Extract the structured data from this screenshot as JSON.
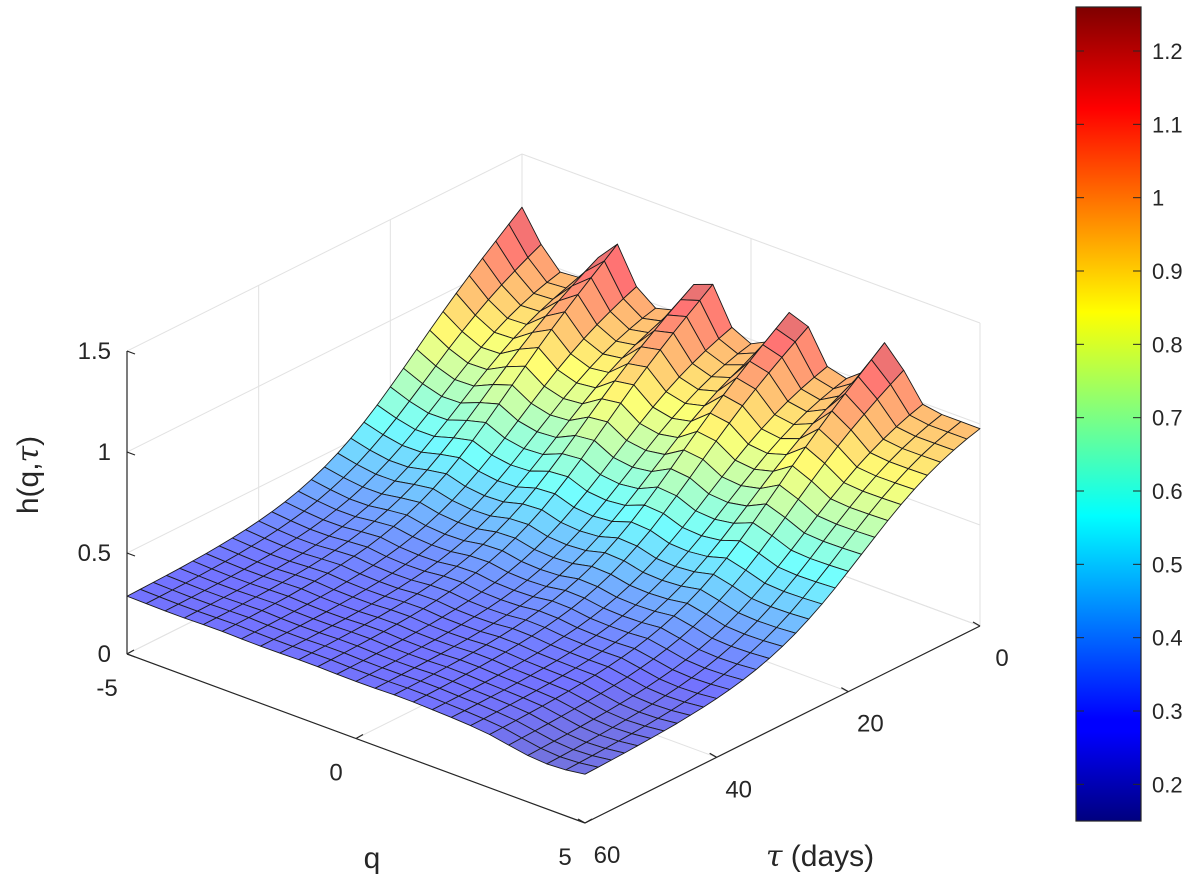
{
  "chart_data": {
    "type": "surface",
    "title": "",
    "colormap": "jet",
    "z_label": "h(q,",
    "z_label_symbol": "τ",
    "z_label_end": ")",
    "q_label": "q",
    "tau_label_symbol": "τ",
    "tau_label_rest": " (days)",
    "z_ticks": [
      "0",
      "0.5",
      "1",
      "1.5"
    ],
    "q_ticks": [
      "-5",
      "0",
      "5"
    ],
    "tau_ticks": [
      "0",
      "20",
      "40",
      "60"
    ],
    "colorbar_ticks": [
      "0.2",
      "0.3",
      "0.4",
      "0.5",
      "0.6",
      "0.7",
      "0.8",
      "0.9",
      "1",
      "1.1",
      "1.2"
    ],
    "zlim": [
      0,
      1.5
    ],
    "q_range": [
      -5,
      5
    ],
    "tau_range": [
      0,
      60
    ],
    "clim": [
      0.15,
      1.26
    ],
    "surface": {
      "q_count": 25,
      "tau_count": 31,
      "description_model": "h decreases from about 1.05-1.25 at tau=0 (peaks at q=-5,-3,-1,1,3) to about 0.28 at tau=60; ridges fade with tau",
      "ridge_q": [
        -5,
        -3,
        -1,
        1,
        3
      ],
      "h_tau0_trough": 1.04,
      "h_tau0_peak": 1.24,
      "h_tau60": 0.28
    }
  }
}
